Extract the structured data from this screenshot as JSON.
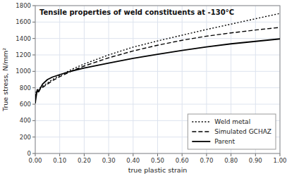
{
  "chart_data": {
    "type": "line",
    "title": "Tensile properties of weld constituents at -130°C",
    "x_label": "true plastic strain",
    "y_label": "True stress, N/mm²",
    "xlim": [
      0.0,
      1.0
    ],
    "ylim": [
      0,
      1800
    ],
    "xticks": [
      {
        "value": 0.0,
        "label": "0.00"
      },
      {
        "value": 0.1,
        "label": "0.10"
      },
      {
        "value": 0.2,
        "label": "0.20"
      },
      {
        "value": 0.3,
        "label": "0.30"
      },
      {
        "value": 0.4,
        "label": "0.40"
      },
      {
        "value": 0.5,
        "label": "0.50"
      },
      {
        "value": 0.6,
        "label": "0.60"
      },
      {
        "value": 0.7,
        "label": "0.70"
      },
      {
        "value": 0.8,
        "label": "0.80"
      },
      {
        "value": 0.9,
        "label": "0.90"
      },
      {
        "value": 1.0,
        "label": "1.00"
      }
    ],
    "yticks": [
      0,
      200,
      400,
      600,
      800,
      1000,
      1200,
      1400,
      1600,
      1800
    ],
    "grid": true,
    "legend": "lower right",
    "series": [
      {
        "name": "Weld metal",
        "color": "#000000",
        "line_style": "dotted",
        "x": [
          0.0,
          0.001,
          0.003,
          0.005,
          0.008,
          0.01,
          0.015,
          0.02,
          0.03,
          0.05,
          0.07,
          0.1,
          0.15,
          0.2,
          0.3,
          0.4,
          0.5,
          0.6,
          0.7,
          0.8,
          0.9,
          1.0
        ],
        "values": [
          700,
          720,
          745,
          758,
          768,
          775,
          790,
          800,
          820,
          858,
          900,
          950,
          1025,
          1090,
          1200,
          1295,
          1370,
          1440,
          1510,
          1575,
          1640,
          1705
        ]
      },
      {
        "name": "Simulated GCHAZ",
        "color": "#000000",
        "line_style": "dashed",
        "x": [
          0.0,
          0.001,
          0.003,
          0.005,
          0.008,
          0.01,
          0.015,
          0.02,
          0.03,
          0.05,
          0.07,
          0.1,
          0.15,
          0.2,
          0.3,
          0.4,
          0.5,
          0.6,
          0.7,
          0.8,
          0.9,
          1.0
        ],
        "values": [
          680,
          700,
          725,
          738,
          750,
          758,
          770,
          782,
          805,
          845,
          885,
          935,
          1005,
          1065,
          1165,
          1248,
          1318,
          1378,
          1428,
          1468,
          1503,
          1535
        ]
      },
      {
        "name": "Parent",
        "color": "#000000",
        "line_style": "solid",
        "x": [
          0.0,
          0.001,
          0.003,
          0.005,
          0.007,
          0.008,
          0.01,
          0.012,
          0.015,
          0.02,
          0.03,
          0.05,
          0.07,
          0.1,
          0.15,
          0.2,
          0.3,
          0.4,
          0.5,
          0.6,
          0.7,
          0.8,
          0.9,
          1.0
        ],
        "values": [
          610,
          640,
          680,
          720,
          760,
          775,
          760,
          750,
          755,
          790,
          845,
          900,
          930,
          960,
          1005,
          1040,
          1100,
          1158,
          1208,
          1255,
          1298,
          1335,
          1365,
          1395
        ]
      }
    ]
  }
}
